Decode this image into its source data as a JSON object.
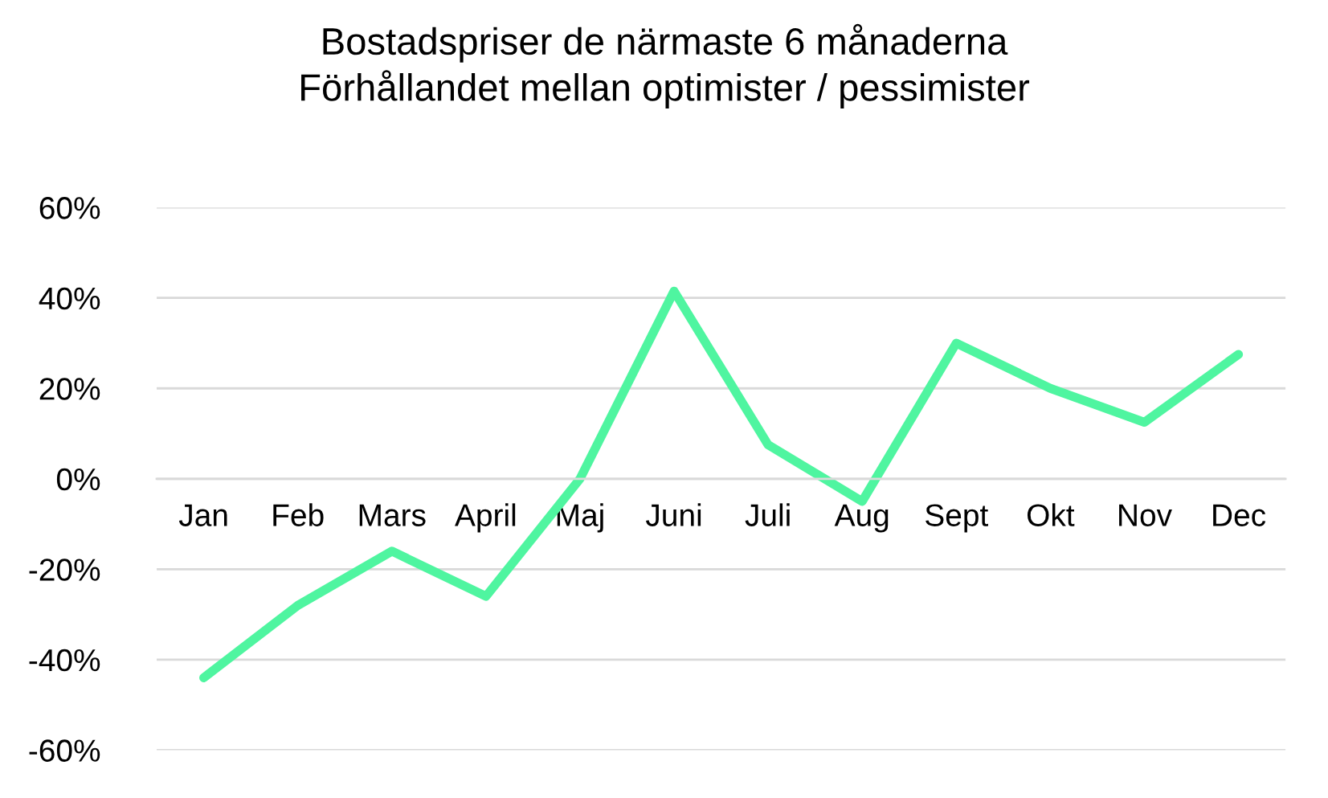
{
  "chart_data": {
    "type": "line",
    "title": "Bostadspriser de närmaste 6 månaderna\nFörhållandet mellan optimister / pessimister",
    "categories": [
      "Jan",
      "Feb",
      "Mars",
      "April",
      "Maj",
      "Juni",
      "Juli",
      "Aug",
      "Sept",
      "Okt",
      "Nov",
      "Dec"
    ],
    "series": [
      {
        "color": "#4ff5a0",
        "values": [
          -44,
          -28,
          -16,
          -26,
          0,
          41.5,
          7.5,
          -5,
          30,
          20,
          12.5,
          27.5
        ]
      }
    ],
    "ylim": [
      -60,
      60
    ],
    "yticks": [
      {
        "value": -60,
        "label": "-60%"
      },
      {
        "value": -40,
        "label": "-40%"
      },
      {
        "value": -20,
        "label": "-20%"
      },
      {
        "value": 0,
        "label": "0%"
      },
      {
        "value": 20,
        "label": "20%"
      },
      {
        "value": 40,
        "label": "40%"
      },
      {
        "value": 60,
        "label": "60%"
      }
    ],
    "grid": "y",
    "legend": false,
    "marker": "none",
    "line_style": "solid"
  }
}
